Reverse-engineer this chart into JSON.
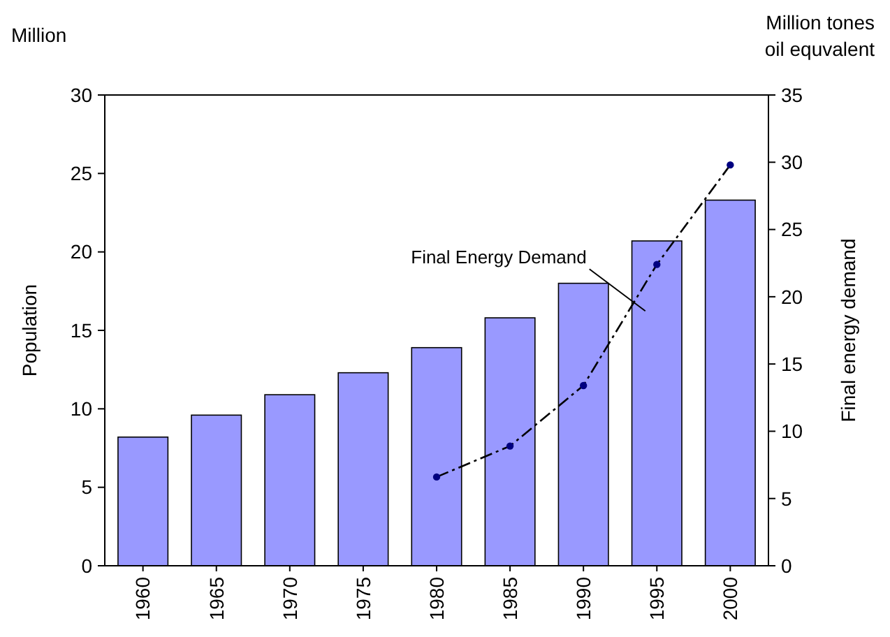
{
  "chart_data": {
    "type": "bar",
    "ylabel": "Population",
    "y2label": "Final energy demand",
    "annotations": [
      "Million",
      "Million tones oil equvalent"
    ],
    "categories": [
      "1960",
      "1965",
      "1970",
      "1975",
      "1980",
      "1985",
      "1990",
      "1995",
      "2000"
    ],
    "series": [
      {
        "color": "#9999ff",
        "values": [
          8.2,
          9.6,
          10.9,
          12.3,
          13.9,
          15.8,
          18.0,
          20.7,
          23.3
        ]
      },
      {
        "type": "line",
        "name": "Final Energy Demand",
        "axis": "y2",
        "color": "#000080",
        "marker": "circle",
        "line_style": "dashed",
        "values": [
          null,
          null,
          null,
          null,
          6.6,
          8.9,
          13.4,
          22.4,
          29.8
        ]
      }
    ],
    "ylim": [
      0,
      30
    ],
    "yticks": [
      0,
      5,
      10,
      15,
      20,
      25,
      30
    ],
    "y2lim": [
      0,
      35
    ],
    "y2ticks": [
      0,
      5,
      10,
      15,
      20,
      25,
      30,
      35
    ],
    "grid": false
  }
}
